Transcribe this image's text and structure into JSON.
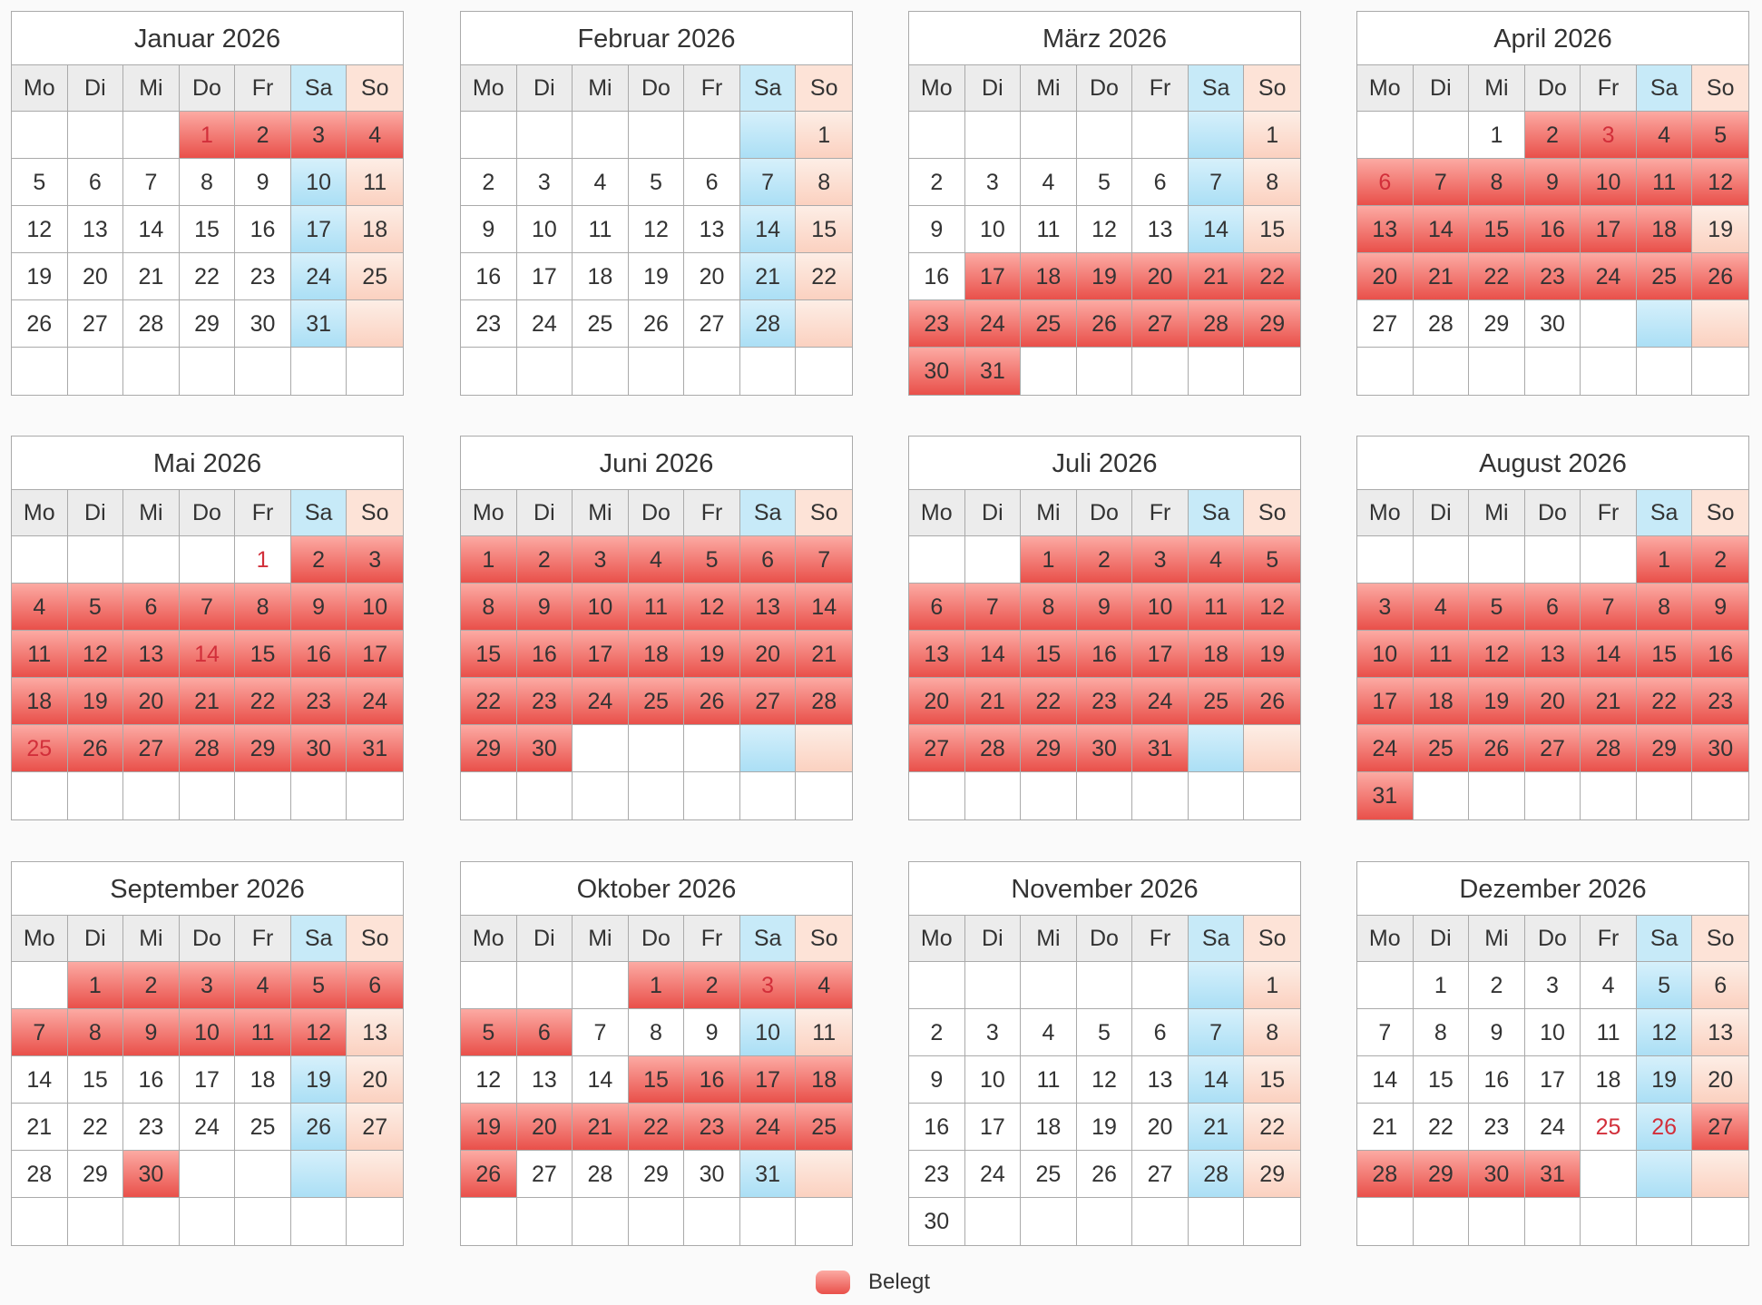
{
  "weekdays": [
    "Mo",
    "Di",
    "Mi",
    "Do",
    "Fr",
    "Sa",
    "So"
  ],
  "months": [
    {
      "title": "Januar 2026",
      "weeks": [
        [
          null,
          null,
          null,
          1,
          2,
          3,
          4
        ],
        [
          5,
          6,
          7,
          8,
          9,
          10,
          11
        ],
        [
          12,
          13,
          14,
          15,
          16,
          17,
          18
        ],
        [
          19,
          20,
          21,
          22,
          23,
          24,
          25
        ],
        [
          26,
          27,
          28,
          29,
          30,
          31,
          null
        ],
        [
          null,
          null,
          null,
          null,
          null,
          null,
          null
        ]
      ],
      "booked": [
        1,
        2,
        3,
        4
      ],
      "holidays": [
        1
      ]
    },
    {
      "title": "Februar 2026",
      "weeks": [
        [
          null,
          null,
          null,
          null,
          null,
          null,
          1
        ],
        [
          2,
          3,
          4,
          5,
          6,
          7,
          8
        ],
        [
          9,
          10,
          11,
          12,
          13,
          14,
          15
        ],
        [
          16,
          17,
          18,
          19,
          20,
          21,
          22
        ],
        [
          23,
          24,
          25,
          26,
          27,
          28,
          null
        ],
        [
          null,
          null,
          null,
          null,
          null,
          null,
          null
        ]
      ],
      "booked": [],
      "holidays": []
    },
    {
      "title": "März 2026",
      "weeks": [
        [
          null,
          null,
          null,
          null,
          null,
          null,
          1
        ],
        [
          2,
          3,
          4,
          5,
          6,
          7,
          8
        ],
        [
          9,
          10,
          11,
          12,
          13,
          14,
          15
        ],
        [
          16,
          17,
          18,
          19,
          20,
          21,
          22
        ],
        [
          23,
          24,
          25,
          26,
          27,
          28,
          29
        ],
        [
          30,
          31,
          null,
          null,
          null,
          null,
          null
        ]
      ],
      "booked": [
        17,
        18,
        19,
        20,
        21,
        22,
        23,
        24,
        25,
        26,
        27,
        28,
        29,
        30,
        31
      ],
      "holidays": []
    },
    {
      "title": "April 2026",
      "weeks": [
        [
          null,
          null,
          1,
          2,
          3,
          4,
          5
        ],
        [
          6,
          7,
          8,
          9,
          10,
          11,
          12
        ],
        [
          13,
          14,
          15,
          16,
          17,
          18,
          19
        ],
        [
          20,
          21,
          22,
          23,
          24,
          25,
          26
        ],
        [
          27,
          28,
          29,
          30,
          null,
          null,
          null
        ],
        [
          null,
          null,
          null,
          null,
          null,
          null,
          null
        ]
      ],
      "booked": [
        2,
        3,
        4,
        5,
        6,
        7,
        8,
        9,
        10,
        11,
        12,
        13,
        14,
        15,
        16,
        17,
        18,
        20,
        21,
        22,
        23,
        24,
        25,
        26
      ],
      "holidays": [
        3,
        6
      ]
    },
    {
      "title": "Mai 2026",
      "weeks": [
        [
          null,
          null,
          null,
          null,
          1,
          2,
          3
        ],
        [
          4,
          5,
          6,
          7,
          8,
          9,
          10
        ],
        [
          11,
          12,
          13,
          14,
          15,
          16,
          17
        ],
        [
          18,
          19,
          20,
          21,
          22,
          23,
          24
        ],
        [
          25,
          26,
          27,
          28,
          29,
          30,
          31
        ],
        [
          null,
          null,
          null,
          null,
          null,
          null,
          null
        ]
      ],
      "booked": [
        2,
        3,
        4,
        5,
        6,
        7,
        8,
        9,
        10,
        11,
        12,
        13,
        14,
        15,
        16,
        17,
        18,
        19,
        20,
        21,
        22,
        23,
        24,
        25,
        26,
        27,
        28,
        29,
        30,
        31
      ],
      "holidays": [
        1,
        14,
        25
      ]
    },
    {
      "title": "Juni 2026",
      "weeks": [
        [
          1,
          2,
          3,
          4,
          5,
          6,
          7
        ],
        [
          8,
          9,
          10,
          11,
          12,
          13,
          14
        ],
        [
          15,
          16,
          17,
          18,
          19,
          20,
          21
        ],
        [
          22,
          23,
          24,
          25,
          26,
          27,
          28
        ],
        [
          29,
          30,
          null,
          null,
          null,
          null,
          null
        ],
        [
          null,
          null,
          null,
          null,
          null,
          null,
          null
        ]
      ],
      "booked": [
        1,
        2,
        3,
        4,
        5,
        6,
        7,
        8,
        9,
        10,
        11,
        12,
        13,
        14,
        15,
        16,
        17,
        18,
        19,
        20,
        21,
        22,
        23,
        24,
        25,
        26,
        27,
        28,
        29,
        30
      ],
      "holidays": []
    },
    {
      "title": "Juli 2026",
      "weeks": [
        [
          null,
          null,
          1,
          2,
          3,
          4,
          5
        ],
        [
          6,
          7,
          8,
          9,
          10,
          11,
          12
        ],
        [
          13,
          14,
          15,
          16,
          17,
          18,
          19
        ],
        [
          20,
          21,
          22,
          23,
          24,
          25,
          26
        ],
        [
          27,
          28,
          29,
          30,
          31,
          null,
          null
        ],
        [
          null,
          null,
          null,
          null,
          null,
          null,
          null
        ]
      ],
      "booked": [
        1,
        2,
        3,
        4,
        5,
        6,
        7,
        8,
        9,
        10,
        11,
        12,
        13,
        14,
        15,
        16,
        17,
        18,
        19,
        20,
        21,
        22,
        23,
        24,
        25,
        26,
        27,
        28,
        29,
        30,
        31
      ],
      "holidays": []
    },
    {
      "title": "August 2026",
      "weeks": [
        [
          null,
          null,
          null,
          null,
          null,
          1,
          2
        ],
        [
          3,
          4,
          5,
          6,
          7,
          8,
          9
        ],
        [
          10,
          11,
          12,
          13,
          14,
          15,
          16
        ],
        [
          17,
          18,
          19,
          20,
          21,
          22,
          23
        ],
        [
          24,
          25,
          26,
          27,
          28,
          29,
          30
        ],
        [
          31,
          null,
          null,
          null,
          null,
          null,
          null
        ]
      ],
      "booked": [
        1,
        2,
        3,
        4,
        5,
        6,
        7,
        8,
        9,
        10,
        11,
        12,
        13,
        14,
        15,
        16,
        17,
        18,
        19,
        20,
        21,
        22,
        23,
        24,
        25,
        26,
        27,
        28,
        29,
        30,
        31
      ],
      "holidays": []
    },
    {
      "title": "September 2026",
      "weeks": [
        [
          null,
          1,
          2,
          3,
          4,
          5,
          6
        ],
        [
          7,
          8,
          9,
          10,
          11,
          12,
          13
        ],
        [
          14,
          15,
          16,
          17,
          18,
          19,
          20
        ],
        [
          21,
          22,
          23,
          24,
          25,
          26,
          27
        ],
        [
          28,
          29,
          30,
          null,
          null,
          null,
          null
        ],
        [
          null,
          null,
          null,
          null,
          null,
          null,
          null
        ]
      ],
      "booked": [
        1,
        2,
        3,
        4,
        5,
        6,
        7,
        8,
        9,
        10,
        11,
        12,
        30
      ],
      "holidays": []
    },
    {
      "title": "Oktober 2026",
      "weeks": [
        [
          null,
          null,
          null,
          1,
          2,
          3,
          4
        ],
        [
          5,
          6,
          7,
          8,
          9,
          10,
          11
        ],
        [
          12,
          13,
          14,
          15,
          16,
          17,
          18
        ],
        [
          19,
          20,
          21,
          22,
          23,
          24,
          25
        ],
        [
          26,
          27,
          28,
          29,
          30,
          31,
          null
        ],
        [
          null,
          null,
          null,
          null,
          null,
          null,
          null
        ]
      ],
      "booked": [
        1,
        2,
        3,
        4,
        5,
        6,
        15,
        16,
        17,
        18,
        19,
        20,
        21,
        22,
        23,
        24,
        25,
        26
      ],
      "holidays": [
        3
      ]
    },
    {
      "title": "November 2026",
      "weeks": [
        [
          null,
          null,
          null,
          null,
          null,
          null,
          1
        ],
        [
          2,
          3,
          4,
          5,
          6,
          7,
          8
        ],
        [
          9,
          10,
          11,
          12,
          13,
          14,
          15
        ],
        [
          16,
          17,
          18,
          19,
          20,
          21,
          22
        ],
        [
          23,
          24,
          25,
          26,
          27,
          28,
          29
        ],
        [
          30,
          null,
          null,
          null,
          null,
          null,
          null
        ]
      ],
      "booked": [],
      "holidays": []
    },
    {
      "title": "Dezember 2026",
      "weeks": [
        [
          null,
          1,
          2,
          3,
          4,
          5,
          6
        ],
        [
          7,
          8,
          9,
          10,
          11,
          12,
          13
        ],
        [
          14,
          15,
          16,
          17,
          18,
          19,
          20
        ],
        [
          21,
          22,
          23,
          24,
          25,
          26,
          27
        ],
        [
          28,
          29,
          30,
          31,
          null,
          null,
          null
        ],
        [
          null,
          null,
          null,
          null,
          null,
          null,
          null
        ]
      ],
      "booked": [
        27,
        28,
        29,
        30,
        31
      ],
      "holidays": [
        25,
        26
      ]
    }
  ],
  "legend": {
    "label": "Belegt"
  }
}
